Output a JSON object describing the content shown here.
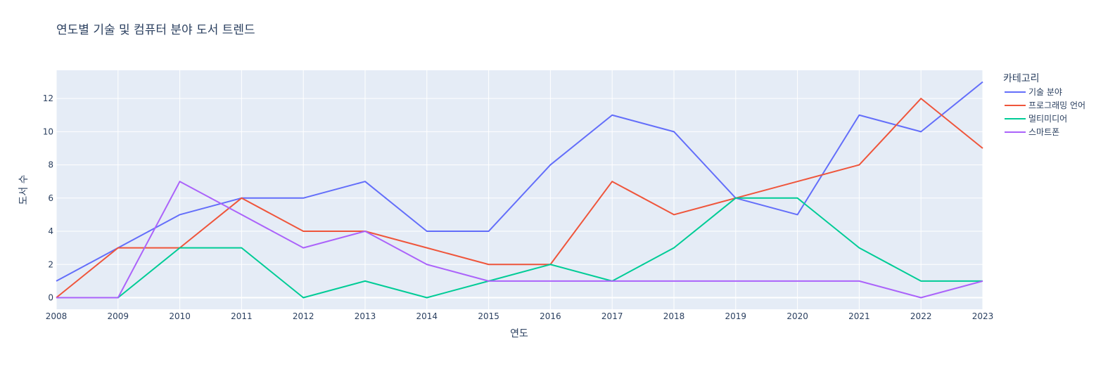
{
  "chart_data": {
    "type": "line",
    "title": "연도별 기술 및 컴퓨터 분야 도서 트렌드",
    "xlabel": "연도",
    "ylabel": "도서 수",
    "x": [
      2008,
      2009,
      2010,
      2011,
      2012,
      2013,
      2014,
      2015,
      2016,
      2017,
      2018,
      2019,
      2020,
      2021,
      2022,
      2023
    ],
    "xlim": [
      2008,
      2023
    ],
    "ylim": [
      -0.7,
      13.7
    ],
    "yticks": [
      0,
      2,
      4,
      6,
      8,
      10,
      12
    ],
    "grid": true,
    "legend": {
      "title": "카테고리",
      "placement": "right"
    },
    "series": [
      {
        "name": "기술 분야",
        "color": "#636efa",
        "values": [
          1,
          3,
          5,
          6,
          6,
          7,
          4,
          4,
          8,
          11,
          10,
          6,
          5,
          11,
          10,
          13
        ]
      },
      {
        "name": "프로그래밍 언어",
        "color": "#ef553b",
        "values": [
          0,
          3,
          3,
          6,
          4,
          4,
          3,
          2,
          2,
          7,
          5,
          6,
          7,
          8,
          12,
          9
        ]
      },
      {
        "name": "멀티미디어",
        "color": "#00cc96",
        "values": [
          0,
          0,
          3,
          3,
          0,
          1,
          0,
          1,
          2,
          1,
          3,
          6,
          6,
          3,
          1,
          1
        ]
      },
      {
        "name": "스마트폰",
        "color": "#ab63fa",
        "values": [
          0,
          0,
          7,
          5,
          3,
          4,
          2,
          1,
          1,
          1,
          1,
          1,
          1,
          1,
          0,
          1
        ]
      }
    ]
  }
}
